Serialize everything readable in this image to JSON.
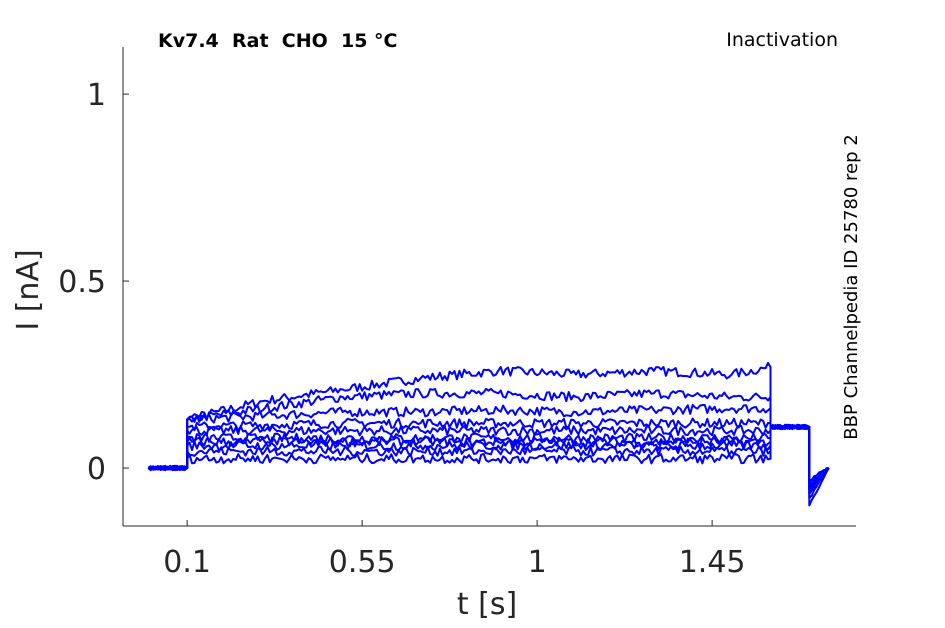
{
  "chart_data": {
    "type": "line",
    "title": "Kv7.4  Rat  CHO  15 °C",
    "annotation_right": "Inactivation",
    "side_label": "BBP Channelpedia ID 25780 rep 2",
    "xlabel": "t [s]",
    "ylabel": "I [nA]",
    "xlim": [
      -0.065,
      1.82
    ],
    "ylim": [
      -0.155,
      1.126
    ],
    "xticks": [
      0.1,
      0.55,
      1,
      1.45
    ],
    "xtick_labels": [
      "0.1",
      "0.55",
      "1",
      "1.45"
    ],
    "yticks": [
      0,
      0.5,
      1
    ],
    "ytick_labels": [
      "0",
      "0.5",
      "1"
    ],
    "grid": false,
    "line_color": "#0000ff",
    "x": [
      0.0,
      0.1,
      0.1,
      0.3,
      0.5,
      0.7,
      0.9,
      1.1,
      1.3,
      1.5,
      1.6,
      1.6,
      1.7,
      1.7,
      1.75
    ],
    "series": [
      {
        "values": [
          0.0,
          0.0,
          0.13,
          0.18,
          0.21,
          0.24,
          0.26,
          0.25,
          0.26,
          0.25,
          0.27,
          0.11,
          0.11,
          -0.1,
          0.0
        ]
      },
      {
        "values": [
          0.0,
          0.0,
          0.13,
          0.16,
          0.19,
          0.2,
          0.2,
          0.19,
          0.2,
          0.19,
          0.19,
          0.11,
          0.11,
          -0.08,
          0.0
        ]
      },
      {
        "values": [
          0.0,
          0.0,
          0.13,
          0.14,
          0.15,
          0.15,
          0.155,
          0.15,
          0.155,
          0.16,
          0.16,
          0.11,
          0.11,
          -0.07,
          0.0
        ]
      },
      {
        "values": [
          0.0,
          0.0,
          0.11,
          0.115,
          0.12,
          0.12,
          0.12,
          0.12,
          0.12,
          0.12,
          0.12,
          0.11,
          0.11,
          -0.06,
          0.0
        ]
      },
      {
        "values": [
          0.0,
          0.0,
          0.1,
          0.1,
          0.1,
          0.1,
          0.1,
          0.1,
          0.1,
          0.1,
          0.1,
          0.11,
          0.11,
          -0.06,
          0.0
        ]
      },
      {
        "values": [
          0.0,
          0.0,
          0.08,
          0.08,
          0.08,
          0.08,
          0.08,
          0.08,
          0.08,
          0.08,
          0.08,
          0.11,
          0.11,
          -0.05,
          0.0
        ]
      },
      {
        "values": [
          0.0,
          0.0,
          0.07,
          0.07,
          0.07,
          0.07,
          0.07,
          0.07,
          0.07,
          0.07,
          0.07,
          0.11,
          0.11,
          -0.05,
          0.0
        ]
      },
      {
        "values": [
          0.0,
          0.0,
          0.06,
          0.06,
          0.06,
          0.06,
          0.06,
          0.06,
          0.06,
          0.06,
          0.06,
          0.11,
          0.11,
          -0.04,
          0.0
        ]
      },
      {
        "values": [
          0.0,
          0.0,
          0.045,
          0.045,
          0.045,
          0.045,
          0.045,
          0.045,
          0.045,
          0.045,
          0.045,
          0.11,
          0.11,
          -0.04,
          0.0
        ]
      },
      {
        "values": [
          0.0,
          0.0,
          0.025,
          0.025,
          0.025,
          0.025,
          0.025,
          0.025,
          0.025,
          0.025,
          0.025,
          0.11,
          0.11,
          -0.03,
          0.0
        ]
      }
    ]
  }
}
